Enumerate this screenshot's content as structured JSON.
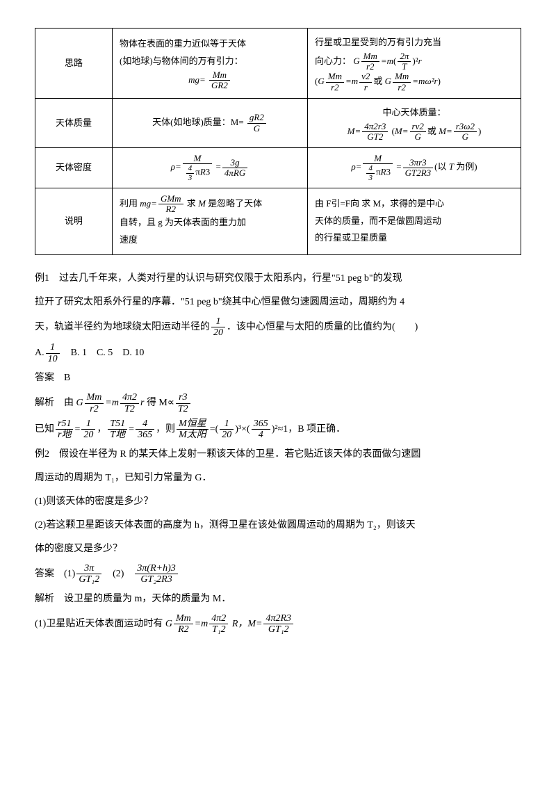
{
  "table": {
    "rows": [
      {
        "label": "思路",
        "col2_lines": [
          "物体在表面的重力近似等于天体",
          "(如地球)与物体间的万有引力："
        ],
        "col2_math": "mg = G Mm / R2",
        "col3_line1": "行星或卫星受到的万有引力充当",
        "col3_line2": "向心力：",
        "col3_math1": "G Mm/r2 = m(2π/T)² r",
        "col3_math2": "(G Mm/r2 = m v2/r 或 G Mm/r2 = mω²r)"
      },
      {
        "label": "天体质量",
        "col2_text": "天体(如地球)质量：M=",
        "col2_frac": "gR2/G",
        "col3_line1": "中心天体质量：",
        "col3_math": "M= 4π2r3/GT2  (M= rv2/G 或 M= r3ω2/G )"
      },
      {
        "label": "天体密度",
        "col2_math": "ρ = M/(4/3 πR3) = 3g/(4πRG)",
        "col3_math": "ρ = M/(4/3 πR3) = 3πr3/(GT2R3) (以 T 为例)"
      },
      {
        "label": "说明",
        "col2_lines": [
          "利用 mg= GMm/R2 求 M 是忽略了天体",
          "自转，且 g 为天体表面的重力加",
          "速度"
        ],
        "col3_lines": [
          "由 F引=F向 求 M，求得的是中心",
          "天体的质量，而不是做圆周运动",
          "的行星或卫星质量"
        ]
      }
    ]
  },
  "body": {
    "ex1_p1": "例1　过去几千年来，人类对行星的认识与研究仅限于太阳系内，行星\"51 peg b\"的发现",
    "ex1_p2": "拉开了研究太阳系外行星的序幕．\"51 peg b\"绕其中心恒星做匀速圆周运动，周期约为 4",
    "ex1_p3a": "天，轨道半径约为地球绕太阳运动半径的",
    "ex1_p3b": "．该中心恒星与太阳的质量的比值约为(　　)",
    "frac_1_20_num": "1",
    "frac_1_20_den": "20",
    "choice_a_num": "1",
    "choice_a_den": "10",
    "choice_a": "A.",
    "choice_rest": "　B. 1　C. 5　D. 10",
    "ans1": "答案　B",
    "jx_label": "解析　由 ",
    "jx_part2": " 得 M∝",
    "known_label": "已知",
    "known_r": "r51/r地",
    "known_r_num": "1",
    "known_r_den": "20",
    "comma1": "，",
    "known_t": "T51/T地",
    "known_t_num": "4",
    "known_t_den": "365",
    "then": "，则",
    "mratio": "M恒星/M太阳",
    "eq_part": "=(",
    "frac_365_4_num": "365",
    "frac_365_4_den": "4",
    "pow_close": ")²≈1，B 项正确．",
    "ex2_p1": "例2　假设在半径为 R 的某天体上发射一颗该天体的卫星．若它贴近该天体的表面做匀速圆",
    "ex2_p2": "周运动的周期为 T₁，已知引力常量为 G．",
    "q1": "(1)则该天体的密度是多少？",
    "q2a": "(2)若这颗卫星距该天体表面的高度为 h，测得卫星在该处做圆周运动的周期为 T₂，则该天",
    "q2b": "体的密度又是多少？",
    "ans2_label": "答案　(1)",
    "ans2_f1_num": "3π",
    "ans2_f1_den": "GT₁2",
    "ans2_mid": "　(2)　",
    "ans2_f2_num": "3π(R+h)3",
    "ans2_f2_den": "GT₂2R3",
    "jx2": "解析　设卫星的质量为 m，天体的质量为 M．",
    "p_last_a": "(1)卫星贴近天体表面运动时有 ",
    "p_last_mid": " R，M=",
    "last_num": "4π2R3",
    "last_den": "GT₁2"
  }
}
